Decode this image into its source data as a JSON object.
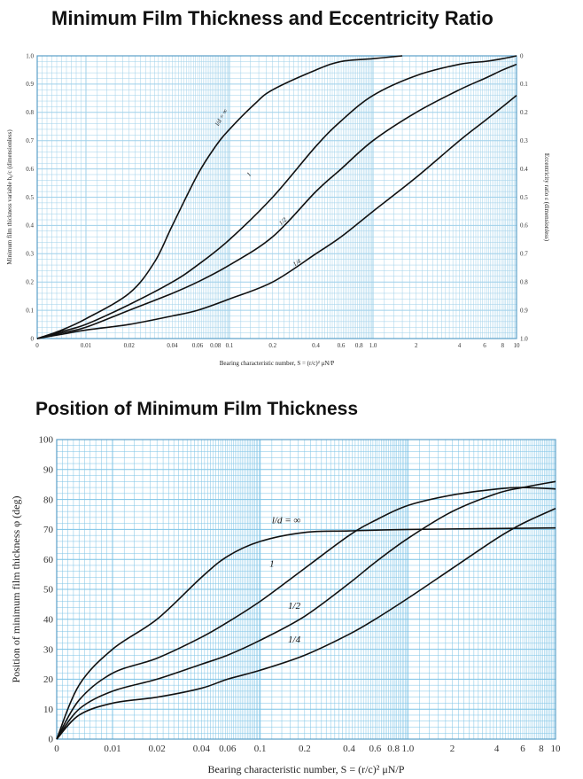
{
  "chart_data": [
    {
      "type": "line",
      "title": "Minimum Film Thickness and Eccentricity Ratio",
      "xlabel": "Bearing characteristic number, S = (r/c)² μN/P",
      "ylabel": "Minimum film thickness variable h₀/c (dimensionless)",
      "y2label": "Eccentricity ratio ε (dimensionless)",
      "xscale": "log (first segment linear from 0 to 0.01)",
      "xticks": [
        "0",
        "0.01",
        "0.02",
        "0.04",
        "0.06",
        "0.08",
        "0.1",
        "0.2",
        "0.4",
        "0.6",
        "0.8",
        "1.0",
        "2",
        "4",
        "6",
        "8",
        "10"
      ],
      "yticks": [
        "0",
        "0.1",
        "0.2",
        "0.3",
        "0.4",
        "0.5",
        "0.6",
        "0.7",
        "0.8",
        "0.9",
        "1.0"
      ],
      "y2ticks": [
        "1.0",
        "0.9",
        "0.8",
        "0.7",
        "0.6",
        "0.5",
        "0.4",
        "0.3",
        "0.2",
        "0.1",
        "0"
      ],
      "ylim": [
        0,
        1
      ],
      "grid": true,
      "series": [
        {
          "name": "l/d = ∞",
          "x": [
            0,
            0.005,
            0.01,
            0.02,
            0.03,
            0.04,
            0.06,
            0.08,
            0.1,
            0.15,
            0.2,
            0.4,
            0.6,
            1.0,
            1.6
          ],
          "y": [
            0,
            0.03,
            0.07,
            0.16,
            0.27,
            0.4,
            0.58,
            0.68,
            0.74,
            0.83,
            0.88,
            0.95,
            0.98,
            0.99,
            1.0
          ]
        },
        {
          "name": "1",
          "x": [
            0,
            0.005,
            0.01,
            0.02,
            0.04,
            0.06,
            0.1,
            0.2,
            0.4,
            0.6,
            1.0,
            2,
            4,
            6,
            8,
            10
          ],
          "y": [
            0,
            0.025,
            0.05,
            0.12,
            0.2,
            0.26,
            0.35,
            0.5,
            0.68,
            0.77,
            0.86,
            0.93,
            0.97,
            0.98,
            0.99,
            1.0
          ]
        },
        {
          "name": "1/2",
          "x": [
            0,
            0.005,
            0.01,
            0.02,
            0.04,
            0.06,
            0.1,
            0.2,
            0.4,
            0.6,
            1.0,
            2,
            4,
            6,
            8,
            10
          ],
          "y": [
            0,
            0.02,
            0.04,
            0.1,
            0.16,
            0.2,
            0.26,
            0.36,
            0.52,
            0.6,
            0.7,
            0.8,
            0.88,
            0.92,
            0.95,
            0.97
          ]
        },
        {
          "name": "1/4",
          "x": [
            0,
            0.005,
            0.01,
            0.02,
            0.04,
            0.06,
            0.1,
            0.2,
            0.4,
            0.6,
            1.0,
            2,
            4,
            6,
            8,
            10
          ],
          "y": [
            0,
            0.015,
            0.03,
            0.05,
            0.08,
            0.1,
            0.14,
            0.2,
            0.3,
            0.36,
            0.45,
            0.57,
            0.7,
            0.77,
            0.82,
            0.86
          ]
        }
      ],
      "line_labels": [
        "l/d = ∞",
        "1",
        "1/2",
        "1/4"
      ]
    },
    {
      "type": "line",
      "title": "Position of Minimum Film Thickness",
      "xlabel": "Bearing characteristic number, S = (r/c)² μN/P",
      "ylabel": "Position of minimum film thickness φ (deg)",
      "xscale": "log (first segment linear from 0 to 0.01)",
      "xticks": [
        "0",
        "0.01",
        "0.02",
        "0.04",
        "0.06",
        "0.1",
        "0.2",
        "0.4",
        "0.6",
        "0.8",
        "1.0",
        "2",
        "4",
        "6",
        "8",
        "10"
      ],
      "yticks": [
        "0",
        "10",
        "20",
        "30",
        "40",
        "50",
        "60",
        "70",
        "80",
        "90",
        "100"
      ],
      "ylim": [
        0,
        100
      ],
      "grid": true,
      "series": [
        {
          "name": "l/d = ∞",
          "x": [
            0,
            0.004,
            0.01,
            0.02,
            0.04,
            0.06,
            0.1,
            0.2,
            0.4,
            1.0,
            10
          ],
          "y": [
            0,
            18,
            30,
            40,
            54,
            61,
            66,
            69,
            69.5,
            70,
            70.5
          ]
        },
        {
          "name": "1",
          "x": [
            0,
            0.004,
            0.01,
            0.02,
            0.04,
            0.06,
            0.1,
            0.2,
            0.4,
            0.6,
            1.0,
            2,
            4,
            6,
            10
          ],
          "y": [
            0,
            13,
            22,
            27,
            34,
            39,
            46,
            57,
            68,
            73,
            78,
            81.5,
            83.5,
            84,
            83.5
          ]
        },
        {
          "name": "1/2",
          "x": [
            0,
            0.004,
            0.01,
            0.02,
            0.04,
            0.06,
            0.1,
            0.2,
            0.4,
            0.6,
            1.0,
            2,
            4,
            6,
            10
          ],
          "y": [
            0,
            10,
            16,
            20,
            25,
            28,
            33,
            41,
            52,
            59,
            67,
            76,
            82,
            84,
            86
          ]
        },
        {
          "name": "1/4",
          "x": [
            0,
            0.004,
            0.01,
            0.02,
            0.04,
            0.06,
            0.1,
            0.2,
            0.4,
            0.6,
            1.0,
            2,
            4,
            6,
            10
          ],
          "y": [
            0,
            8,
            12,
            14,
            17,
            20,
            23,
            28,
            35,
            40,
            47,
            57,
            67,
            72,
            77
          ]
        }
      ],
      "line_labels": [
        "l/d = ∞",
        "1",
        "1/2",
        "1/4"
      ]
    }
  ]
}
